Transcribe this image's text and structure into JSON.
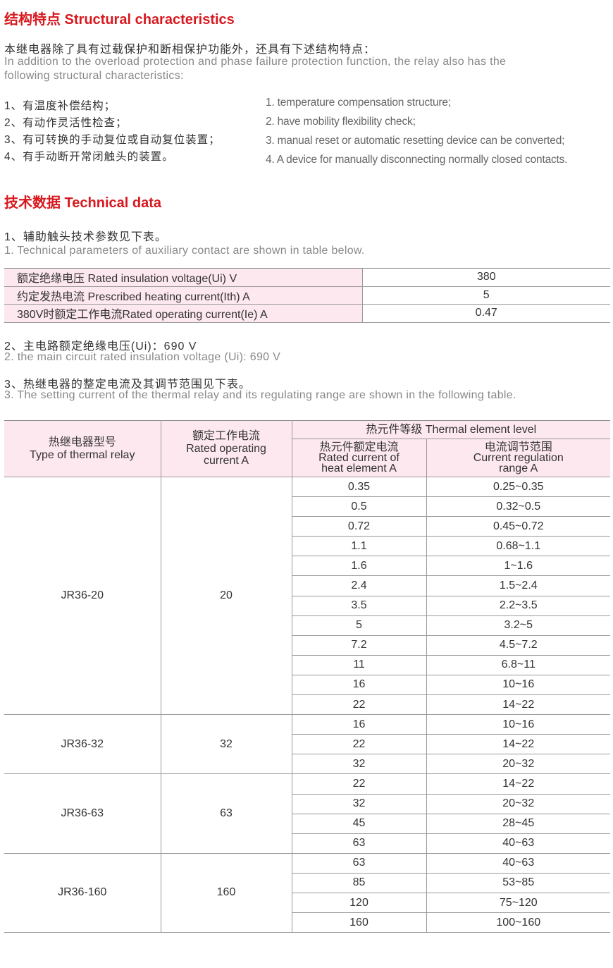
{
  "section1": {
    "title": "结构特点 Structural characteristics",
    "intro_cn": "本继电器除了具有过载保护和断相保护功能外，还具有下述结构特点：",
    "intro_en_1": "In addition to the overload protection and phase failure protection function, the relay also has the",
    "intro_en_2": "following structural characteristics:",
    "items_cn": [
      "1、有温度补偿结构；",
      "2、有动作灵活性检查；",
      "3、有可转换的手动复位或自动复位装置；",
      "4、有手动断开常闭触头的装置。"
    ],
    "items_en": [
      "1. temperature compensation structure;",
      "2. have mobility flexibility check;",
      "3.  manual reset or automatic resetting device can be converted;",
      "4. A device for manually disconnecting normally closed contacts."
    ]
  },
  "section2": {
    "title": "技术数据 Technical data",
    "p1_cn": "1、辅助触头技术参数见下表。",
    "p1_en": "1. Technical parameters of auxiliary contact are shown in table below.",
    "aux_table": [
      {
        "k": "额定绝缘电压 Rated insulation voltage(Ui) V",
        "v": "380"
      },
      {
        "k": "约定发热电流 Prescribed heating current(Ith) A",
        "v": "5"
      },
      {
        "k": "380V时额定工作电流Rated operating current(Ie) A",
        "v": "0.47"
      }
    ],
    "p2_cn": "2、主电路额定绝缘电压(Ui)：690 V",
    "p2_en": "2. the main circuit rated insulation voltage (Ui): 690 V",
    "p3_cn": "3、热继电器的整定电流及其调节范围见下表。",
    "p3_en": "3. The setting current of the thermal relay and its regulating range are shown in the following table.",
    "main_table": {
      "headers": {
        "type_cn": "热继电器型号",
        "type_en": "Type of thermal relay",
        "rated_cn": "额定工作电流",
        "rated_en_1": "Rated operating",
        "rated_en_2": "current A",
        "level": "热元件等级 Thermal element level",
        "heat_cn": "热元件额定电流",
        "heat_en_1": "Rated current of",
        "heat_en_2": "heat element A",
        "range_cn": "电流调节范围",
        "range_en_1": "Current regulation",
        "range_en_2": "range A"
      },
      "groups": [
        {
          "model": "JR36-20",
          "current": "20",
          "rows": [
            [
              "0.35",
              "0.25~0.35"
            ],
            [
              "0.5",
              "0.32~0.5"
            ],
            [
              "0.72",
              "0.45~0.72"
            ],
            [
              "1.1",
              "0.68~1.1"
            ],
            [
              "1.6",
              "1~1.6"
            ],
            [
              "2.4",
              "1.5~2.4"
            ],
            [
              "3.5",
              "2.2~3.5"
            ],
            [
              "5",
              "3.2~5"
            ],
            [
              "7.2",
              "4.5~7.2"
            ],
            [
              "11",
              "6.8~11"
            ],
            [
              "16",
              "10~16"
            ],
            [
              "22",
              "14~22"
            ]
          ]
        },
        {
          "model": "JR36-32",
          "current": "32",
          "rows": [
            [
              "16",
              "10~16"
            ],
            [
              "22",
              "14~22"
            ],
            [
              "32",
              "20~32"
            ]
          ]
        },
        {
          "model": "JR36-63",
          "current": "63",
          "rows": [
            [
              "22",
              "14~22"
            ],
            [
              "32",
              "20~32"
            ],
            [
              "45",
              "28~45"
            ],
            [
              "63",
              "40~63"
            ]
          ]
        },
        {
          "model": "JR36-160",
          "current": "160",
          "rows": [
            [
              "63",
              "40~63"
            ],
            [
              "85",
              "53~85"
            ],
            [
              "120",
              "75~120"
            ],
            [
              "160",
              "100~160"
            ]
          ]
        }
      ]
    }
  },
  "colors": {
    "accent": "#d7191f",
    "header_bg": "#fde8ef"
  }
}
